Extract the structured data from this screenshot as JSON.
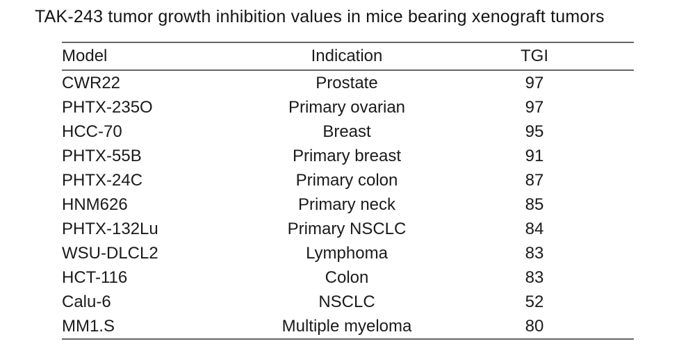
{
  "chart_data": {
    "type": "table",
    "title": "TAK-243 tumor growth inhibition values in mice bearing xenograft tumors",
    "columns": [
      "Model",
      "Indication",
      "TGI"
    ],
    "rows": [
      [
        "CWR22",
        "Prostate",
        "97"
      ],
      [
        "PHTX-235O",
        "Primary ovarian",
        "97"
      ],
      [
        "HCC-70",
        "Breast",
        "95"
      ],
      [
        "PHTX-55B",
        "Primary breast",
        "91"
      ],
      [
        "PHTX-24C",
        "Primary colon",
        "87"
      ],
      [
        "HNM626",
        "Primary neck",
        "85"
      ],
      [
        "PHTX-132Lu",
        "Primary NSCLC",
        "84"
      ],
      [
        "WSU-DLCL2",
        "Lymphoma",
        "83"
      ],
      [
        "HCT-116",
        "Colon",
        "83"
      ],
      [
        "Calu-6",
        "NSCLC",
        "52"
      ],
      [
        "MM1.S",
        "Multiple myeloma",
        "80"
      ]
    ]
  },
  "colors": {
    "background": "#ffffff",
    "text": "#1a1a1a",
    "rule": "#666666"
  }
}
